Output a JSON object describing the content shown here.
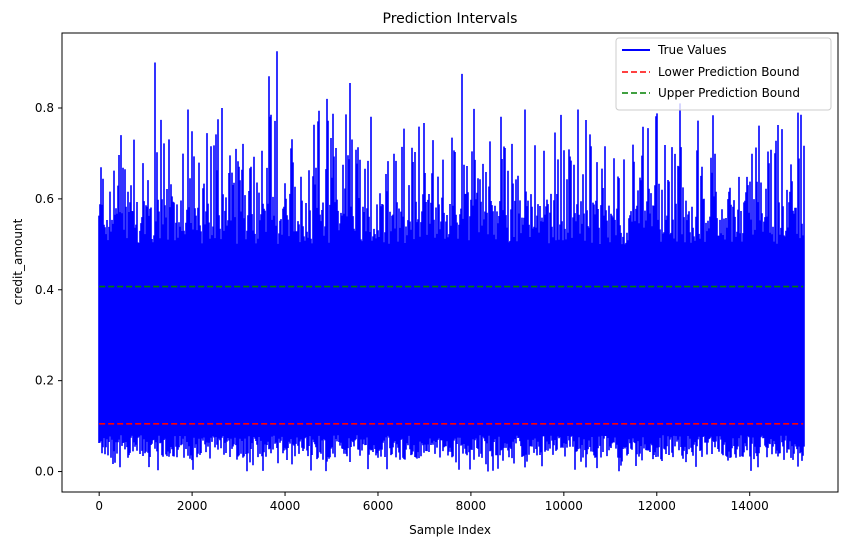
{
  "chart_data": {
    "type": "line",
    "title": "Prediction Intervals",
    "xlabel": "Sample Index",
    "ylabel": "credit_amount",
    "xlim": [
      -800,
      15900
    ],
    "ylim": [
      -0.045,
      0.965
    ],
    "xticks": [
      0,
      2000,
      4000,
      6000,
      8000,
      10000,
      12000,
      14000
    ],
    "yticks": [
      0.0,
      0.2,
      0.4,
      0.6,
      0.8
    ],
    "ytick_labels": [
      "0.0",
      "0.2",
      "0.4",
      "0.6",
      "0.8"
    ],
    "grid": false,
    "legend": {
      "placement": "top-right",
      "entries": [
        "True Values",
        "Lower Prediction Bound",
        "Upper Prediction Bound"
      ]
    },
    "series": [
      {
        "name": "True Values",
        "style": "solid",
        "color": "#0000ff",
        "n_points": 15150,
        "typical_range": [
          0.05,
          0.6
        ],
        "peaks": [
          {
            "x": 1200,
            "y": 0.9
          },
          {
            "x": 2650,
            "y": 0.8
          },
          {
            "x": 3650,
            "y": 0.87
          },
          {
            "x": 3830,
            "y": 0.925
          },
          {
            "x": 4900,
            "y": 0.82
          },
          {
            "x": 5400,
            "y": 0.855
          },
          {
            "x": 7800,
            "y": 0.875
          },
          {
            "x": 12500,
            "y": 0.81
          },
          {
            "x": 15100,
            "y": 0.785
          }
        ]
      },
      {
        "name": "Lower Prediction Bound",
        "style": "dashed",
        "color": "#ff0000",
        "x": [
          0,
          15150
        ],
        "y": [
          0.105,
          0.105
        ]
      },
      {
        "name": "Upper Prediction Bound",
        "style": "dashed",
        "color": "#008000",
        "x": [
          0,
          15150
        ],
        "y": [
          0.407,
          0.407
        ]
      }
    ]
  }
}
